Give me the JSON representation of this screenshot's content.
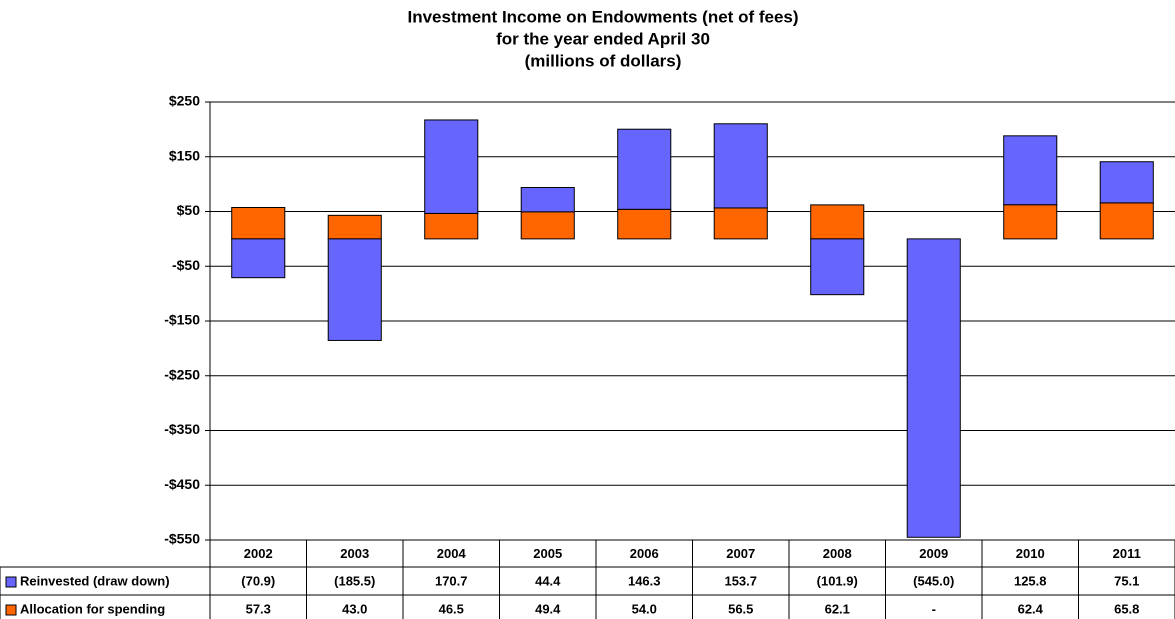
{
  "chart_data": {
    "type": "stacked-bar",
    "title": [
      "Investment Income on Endowments (net of fees)",
      "for the year ended April 30",
      "(millions of dollars)"
    ],
    "categories": [
      "2002",
      "2003",
      "2004",
      "2005",
      "2006",
      "2007",
      "2008",
      "2009",
      "2010",
      "2011"
    ],
    "series": [
      {
        "name": "Reinvested (draw down)",
        "color": "#6666ff",
        "values": [
          -70.9,
          -185.5,
          170.7,
          44.4,
          146.3,
          153.7,
          -101.9,
          -545.0,
          125.8,
          75.1
        ],
        "value_labels": [
          "(70.9)",
          "(185.5)",
          "170.7",
          "44.4",
          "146.3",
          "153.7",
          "(101.9)",
          "(545.0)",
          "125.8",
          "75.1"
        ]
      },
      {
        "name": "Allocation for spending",
        "color": "#ff6600",
        "values": [
          57.3,
          43.0,
          46.5,
          49.4,
          54.0,
          56.5,
          62.1,
          0,
          62.4,
          65.8
        ],
        "value_labels": [
          "57.3",
          "43.0",
          "46.5",
          "49.4",
          "54.0",
          "56.5",
          "62.1",
          "-",
          "62.4",
          "65.8"
        ]
      }
    ],
    "ylim": [
      -550,
      250
    ],
    "yticks": [
      {
        "value": 250,
        "label": "$250"
      },
      {
        "value": 150,
        "label": "$150"
      },
      {
        "value": 50,
        "label": "$50"
      },
      {
        "value": -50,
        "label": "-$50"
      },
      {
        "value": -150,
        "label": "-$150"
      },
      {
        "value": -250,
        "label": "-$250"
      },
      {
        "value": -350,
        "label": "-$350"
      },
      {
        "value": -450,
        "label": "-$450"
      },
      {
        "value": -550,
        "label": "-$550"
      }
    ],
    "grid": true
  }
}
